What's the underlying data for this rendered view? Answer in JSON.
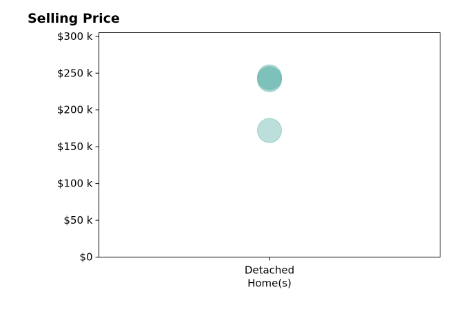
{
  "chart_data": {
    "type": "scatter",
    "title": "Selling Price",
    "xlabel": "",
    "ylabel": "",
    "categories": [
      "Detached\nHome(s)"
    ],
    "ylim": [
      0,
      305000
    ],
    "y_ticks": [
      {
        "value": 0,
        "label": "$0"
      },
      {
        "value": 50000,
        "label": "$50 k"
      },
      {
        "value": 100000,
        "label": "$100 k"
      },
      {
        "value": 150000,
        "label": "$150 k"
      },
      {
        "value": 200000,
        "label": "$200 k"
      },
      {
        "value": 250000,
        "label": "$250 k"
      },
      {
        "value": 300000,
        "label": "$300 k"
      }
    ],
    "points": [
      {
        "category": "Detached\nHome(s)",
        "value": 245000
      },
      {
        "category": "Detached\nHome(s)",
        "value": 243000
      },
      {
        "category": "Detached\nHome(s)",
        "value": 241000
      },
      {
        "category": "Detached\nHome(s)",
        "value": 172000
      }
    ],
    "marker_color": "#5fb3aa",
    "grid": false,
    "legend": "none"
  }
}
